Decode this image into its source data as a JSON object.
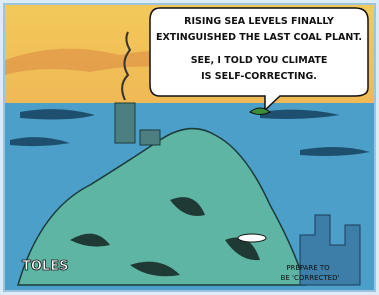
{
  "speech_bubble": {
    "lines": [
      "RISING SEA LEVELS FINALLY",
      "EXTINGUISHED THE LAST COAL PLANT.",
      "SEE, I TOLD YOU CLIMATE",
      "IS SELF-CORRECTING."
    ]
  },
  "caption": {
    "lines": [
      "PREPARE TO",
      "BE 'CORRECTED'"
    ]
  },
  "signature": "TOLES"
}
